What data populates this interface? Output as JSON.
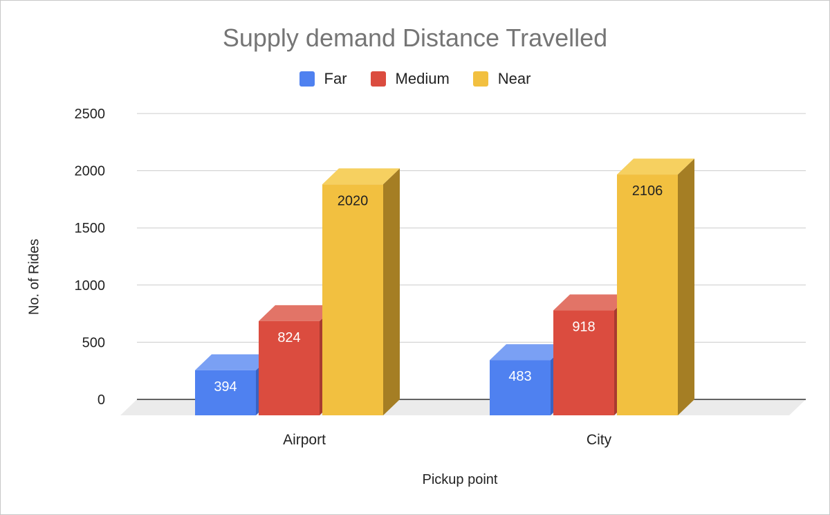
{
  "chart_data": {
    "type": "bar",
    "title": "Supply demand Distance Travelled",
    "xlabel": "Pickup point",
    "ylabel": "No. of Rides",
    "categories": [
      "Airport",
      "City"
    ],
    "series": [
      {
        "name": "Far",
        "values": [
          394,
          483
        ],
        "color": "#4f81f0",
        "top": "#7aa0f4",
        "side": "#3a62c2"
      },
      {
        "name": "Medium",
        "values": [
          824,
          918
        ],
        "color": "#db4c3f",
        "top": "#e27467",
        "side": "#a83a30"
      },
      {
        "name": "Near",
        "values": [
          2020,
          2106
        ],
        "color": "#f2c040",
        "top": "#f6d060",
        "side": "#a57e24"
      }
    ],
    "yticks": [
      0,
      500,
      1000,
      1500,
      2000,
      2500
    ],
    "ylim": [
      0,
      2500
    ],
    "grid": true,
    "legend": "top-center",
    "style": "3d-column"
  }
}
